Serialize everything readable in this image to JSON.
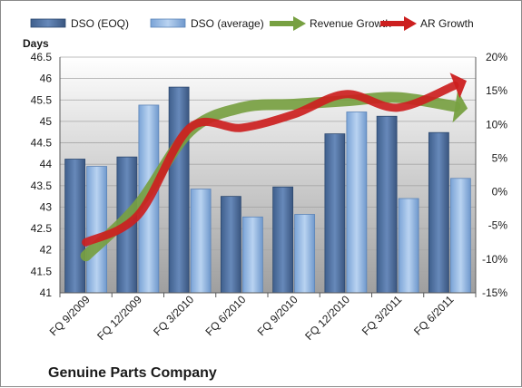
{
  "chart_data": {
    "type": "bar",
    "title": "Genuine Parts Company",
    "y_left_label": "Days",
    "categories": [
      "FQ 9/2009",
      "FQ 12/2009",
      "FQ 3/2010",
      "FQ 6/2010",
      "FQ 9/2010",
      "FQ 12/2010",
      "FQ 3/2011",
      "FQ 6/2011"
    ],
    "series": [
      {
        "name": "DSO (EOQ)",
        "axis": "left",
        "values": [
          44.12,
          44.17,
          45.8,
          43.25,
          43.47,
          44.71,
          45.12,
          44.74
        ],
        "color": "#4a6d9c"
      },
      {
        "name": "DSO (average)",
        "axis": "left",
        "values": [
          43.95,
          45.38,
          43.42,
          42.77,
          42.83,
          45.22,
          43.2,
          43.67
        ],
        "color": "#8fb4e3"
      },
      {
        "name": "Revenue Growth",
        "axis": "right",
        "values": [
          -9.5,
          -2.0,
          9.0,
          12.5,
          13.0,
          13.5,
          14.0,
          12.8
        ],
        "color": "#77a041"
      },
      {
        "name": "AR Growth",
        "axis": "right",
        "values": [
          -7.5,
          -3.5,
          9.5,
          9.5,
          11.5,
          14.5,
          12.5,
          15.5
        ],
        "color": "#cc1f1f"
      }
    ],
    "y_left": {
      "min": 41,
      "max": 46.5,
      "step": 0.5,
      "ticks": [
        "41",
        "41.5",
        "42",
        "42.5",
        "43",
        "43.5",
        "44",
        "44.5",
        "45",
        "45.5",
        "46",
        "46.5"
      ]
    },
    "y_right": {
      "min": -15,
      "max": 20,
      "step": 5,
      "ticks": [
        "-15%",
        "-10%",
        "-5%",
        "0%",
        "5%",
        "10%",
        "15%",
        "20%"
      ]
    },
    "legend_position": "top",
    "grid": true
  }
}
